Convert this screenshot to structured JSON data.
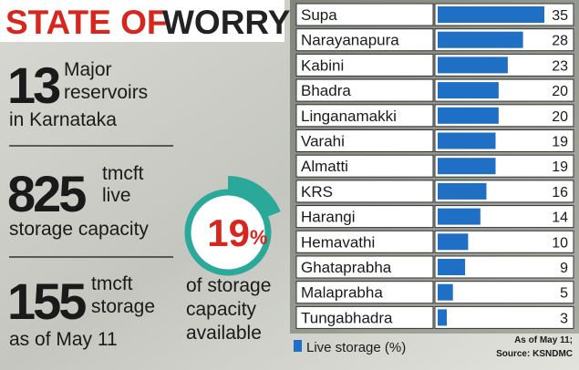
{
  "title": {
    "part1": "STATE OF",
    "part2": "WORRY"
  },
  "stats": [
    {
      "number": 13,
      "lines": [
        "Major",
        "reservoirs",
        "in Karnataka"
      ]
    },
    {
      "number": 825,
      "lines": [
        "tmcft",
        "live",
        "storage capacity"
      ]
    },
    {
      "number": 155,
      "lines": [
        "tmcft",
        "storage",
        "as of May 11"
      ]
    }
  ],
  "gauge": {
    "value": 19,
    "unit": "%",
    "lines": [
      "of storage",
      "capacity",
      "available"
    ]
  },
  "chart_data": {
    "type": "bar",
    "orientation": "horizontal",
    "categories": [
      "Supa",
      "Narayanapura",
      "Kabini",
      "Bhadra",
      "Linganamakki",
      "Varahi",
      "Almatti",
      "KRS",
      "Harangi",
      "Hemavathi",
      "Ghataprabha",
      "Malaprabha",
      "Tungabhadra"
    ],
    "values": [
      35,
      28,
      23,
      20,
      20,
      19,
      19,
      16,
      14,
      10,
      9,
      5,
      3
    ],
    "color": "#1f6fc4",
    "legend": "Live storage (%)",
    "note": [
      "As of May 11;",
      "Source: KSNDMC"
    ]
  }
}
